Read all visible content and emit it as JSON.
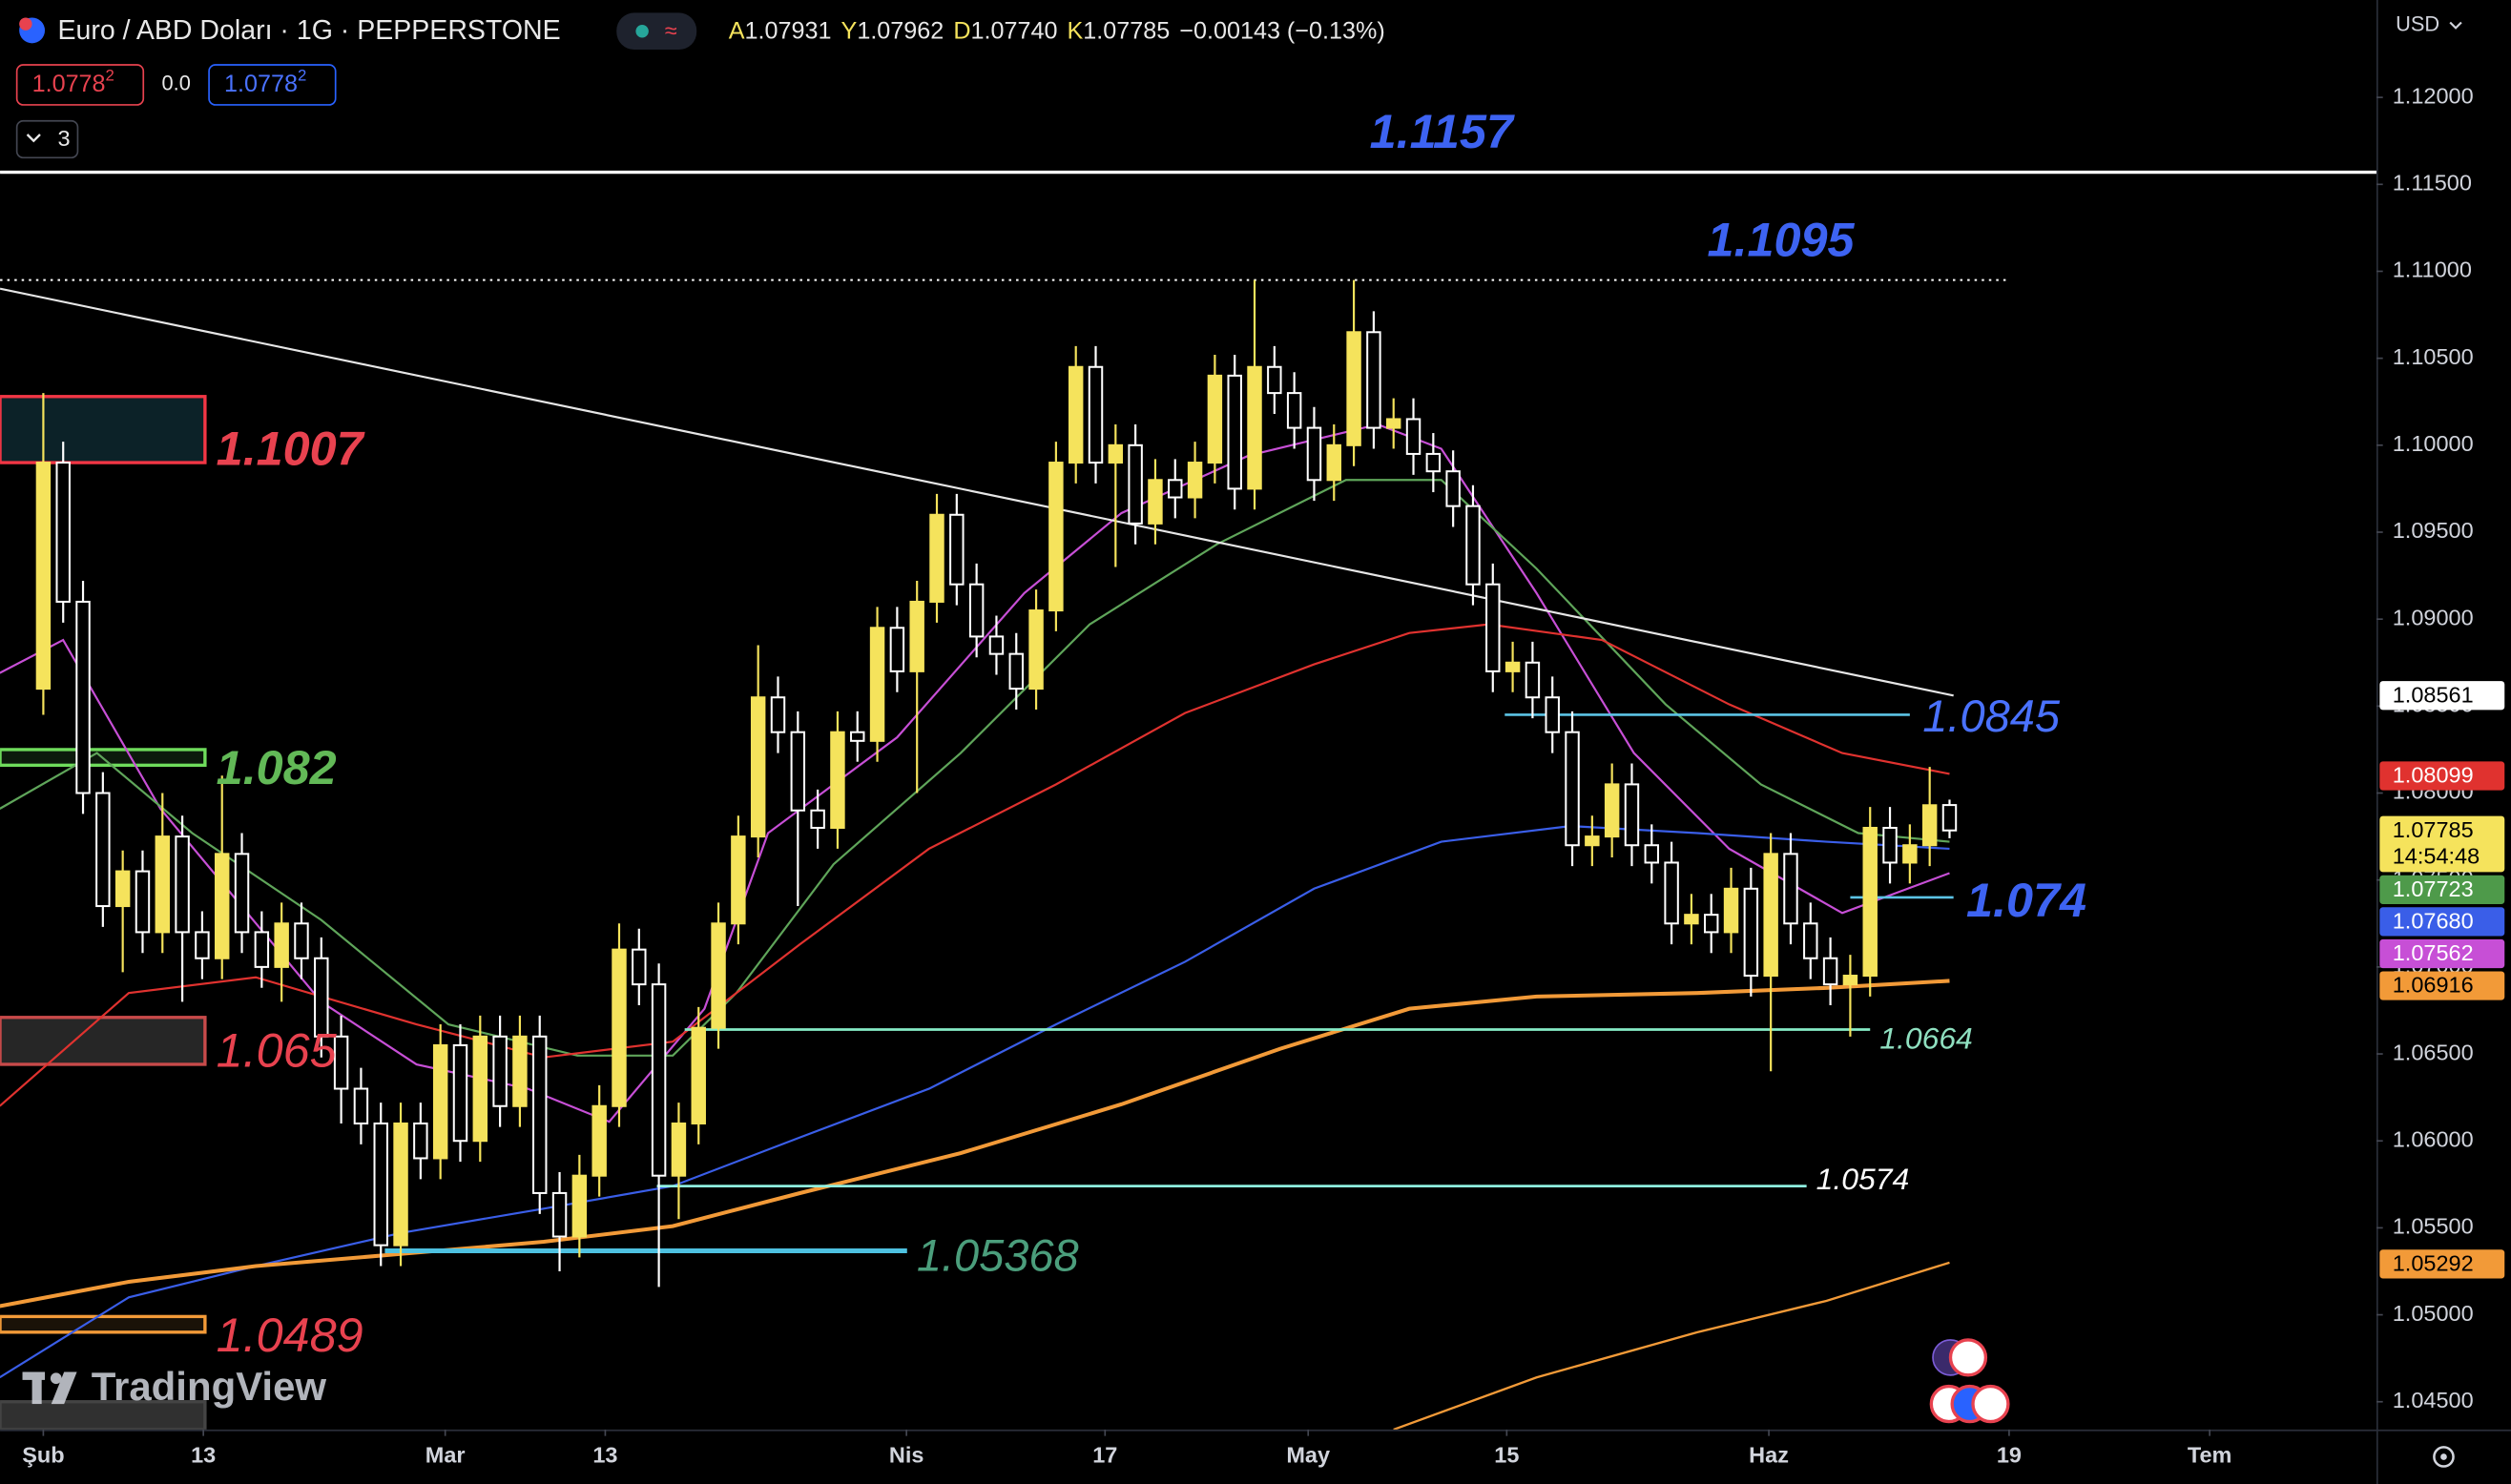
{
  "header": {
    "symbol": "Euro / ABD Doları · 1G · PEPPERSTONE",
    "ohlc": [
      {
        "key": "A",
        "value": "1.07931"
      },
      {
        "key": "Y",
        "value": "1.07962"
      },
      {
        "key": "D",
        "value": "1.07740"
      },
      {
        "key": "K",
        "value": "1.07785"
      }
    ],
    "change": "−0.00143 (−0.13%)",
    "sell": "1.0778",
    "sell_sup": "2",
    "spread": "0.0",
    "buy": "1.0778",
    "buy_sup": "2",
    "indicators": "3",
    "currency": "USD",
    "brand": "TradingView"
  },
  "chart_data": {
    "type": "candlestick",
    "up_color": "#f5e35c",
    "down_color": "#ffffff",
    "open": [
      1.086,
      1.099,
      1.091,
      1.08,
      1.0735,
      1.0755,
      1.072,
      1.0775,
      1.072,
      1.0705,
      1.0765,
      1.072,
      1.07,
      1.0725,
      1.0705,
      1.066,
      1.063,
      1.061,
      1.054,
      1.061,
      1.059,
      1.0655,
      1.06,
      1.066,
      1.062,
      1.066,
      1.057,
      1.0545,
      1.058,
      1.062,
      1.071,
      1.069,
      1.058,
      1.061,
      1.0665,
      1.0725,
      1.0775,
      1.0855,
      1.0835,
      1.079,
      1.078,
      1.0835,
      1.083,
      1.0895,
      1.087,
      1.091,
      1.096,
      1.092,
      1.089,
      1.088,
      1.086,
      1.0905,
      1.099,
      1.1045,
      1.099,
      1.1,
      1.0955,
      1.098,
      1.097,
      1.099,
      1.104,
      1.0975,
      1.1045,
      1.103,
      1.101,
      1.098,
      1.1,
      1.1065,
      1.101,
      1.1015,
      1.0995,
      1.0985,
      1.0965,
      1.092,
      1.087,
      1.0875,
      1.0855,
      1.0835,
      1.077,
      1.0775,
      1.0805,
      1.077,
      1.076,
      1.0725,
      1.073,
      1.072,
      1.0745,
      1.0695,
      1.0765,
      1.0725,
      1.0705,
      1.069,
      1.0695,
      1.078,
      1.076,
      1.077,
      1.07931
    ],
    "high": [
      1.103,
      1.1002,
      1.0922,
      1.0812,
      1.0767,
      1.0767,
      1.08,
      1.0787,
      1.0732,
      1.081,
      1.0777,
      1.0732,
      1.0737,
      1.0737,
      1.0717,
      1.0672,
      1.0642,
      1.0622,
      1.0622,
      1.0622,
      1.0667,
      1.0667,
      1.0672,
      1.0672,
      1.0672,
      1.0672,
      1.0582,
      1.0592,
      1.0632,
      1.0725,
      1.0722,
      1.0702,
      1.0622,
      1.0677,
      1.0737,
      1.0787,
      1.0885,
      1.0867,
      1.0847,
      1.0802,
      1.0847,
      1.0847,
      1.0907,
      1.0907,
      1.0922,
      1.0972,
      1.0972,
      1.0932,
      1.0902,
      1.0892,
      1.0917,
      1.1002,
      1.1057,
      1.1057,
      1.1012,
      1.1012,
      1.0992,
      1.0992,
      1.1002,
      1.1052,
      1.1052,
      1.1095,
      1.1057,
      1.1042,
      1.1022,
      1.1012,
      1.1095,
      1.1077,
      1.1027,
      1.1027,
      1.1007,
      1.0997,
      1.0977,
      1.0932,
      1.0887,
      1.0887,
      1.0867,
      1.0847,
      1.0787,
      1.0817,
      1.0817,
      1.0782,
      1.0772,
      1.0742,
      1.0742,
      1.0757,
      1.0757,
      1.0777,
      1.0777,
      1.0737,
      1.0717,
      1.0707,
      1.0792,
      1.0792,
      1.0782,
      1.0815,
      1.07962
    ],
    "low": [
      1.0845,
      1.0898,
      1.0788,
      1.0723,
      1.0697,
      1.0708,
      1.0708,
      1.068,
      1.0693,
      1.0693,
      1.0708,
      1.0688,
      1.068,
      1.0693,
      1.0648,
      1.061,
      1.0598,
      1.0528,
      1.0528,
      1.0578,
      1.0578,
      1.0588,
      1.0588,
      1.0608,
      1.0608,
      1.0558,
      1.0525,
      1.0533,
      1.0568,
      1.0608,
      1.0678,
      1.0516,
      1.0555,
      1.0598,
      1.0653,
      1.0713,
      1.0763,
      1.0823,
      1.0735,
      1.0768,
      1.0768,
      1.0818,
      1.0818,
      1.0858,
      1.08,
      1.0898,
      1.0908,
      1.0878,
      1.0868,
      1.0848,
      1.0848,
      1.0893,
      1.0978,
      1.0978,
      1.093,
      1.0943,
      1.0943,
      1.0958,
      1.0958,
      1.0978,
      1.0963,
      1.0963,
      1.1018,
      1.0998,
      1.0968,
      1.0968,
      1.0988,
      1.0998,
      1.0998,
      1.0983,
      1.0973,
      1.0953,
      1.0908,
      1.0858,
      1.0858,
      1.0843,
      1.0823,
      1.0758,
      1.0758,
      1.0763,
      1.0758,
      1.0748,
      1.0713,
      1.0713,
      1.0708,
      1.0708,
      1.0683,
      1.064,
      1.0713,
      1.0693,
      1.0678,
      1.066,
      1.0683,
      1.0748,
      1.0748,
      1.0758,
      1.0774
    ],
    "close": [
      1.099,
      1.091,
      1.08,
      1.0735,
      1.0755,
      1.072,
      1.0775,
      1.072,
      1.0705,
      1.0765,
      1.072,
      1.07,
      1.0725,
      1.0705,
      1.066,
      1.063,
      1.061,
      1.054,
      1.061,
      1.059,
      1.0655,
      1.06,
      1.066,
      1.062,
      1.066,
      1.057,
      1.0545,
      1.058,
      1.062,
      1.071,
      1.069,
      1.058,
      1.061,
      1.0665,
      1.0725,
      1.0775,
      1.0855,
      1.0835,
      1.079,
      1.078,
      1.0835,
      1.083,
      1.0895,
      1.087,
      1.091,
      1.096,
      1.092,
      1.089,
      1.088,
      1.086,
      1.0905,
      1.099,
      1.1045,
      1.099,
      1.1,
      1.0955,
      1.098,
      1.097,
      1.099,
      1.104,
      1.0975,
      1.1045,
      1.103,
      1.101,
      1.098,
      1.1,
      1.1065,
      1.101,
      1.1015,
      1.0995,
      1.0985,
      1.0965,
      1.092,
      1.087,
      1.0875,
      1.0855,
      1.0835,
      1.077,
      1.0775,
      1.0805,
      1.077,
      1.076,
      1.0725,
      1.073,
      1.072,
      1.0745,
      1.0695,
      1.0765,
      1.0725,
      1.0705,
      1.069,
      1.0695,
      1.078,
      1.076,
      1.077,
      1.0793,
      1.07785
    ],
    "xlim": [
      -2.18,
      117.5
    ],
    "xticks": [
      {
        "value": 0,
        "label": "Şub"
      },
      {
        "value": 8.06,
        "label": "13"
      },
      {
        "value": 20.24,
        "label": "Mar"
      },
      {
        "value": 28.3,
        "label": "13"
      },
      {
        "value": 43.47,
        "label": "Nis"
      },
      {
        "value": 53.47,
        "label": "17"
      },
      {
        "value": 63.7,
        "label": "May"
      },
      {
        "value": 73.7,
        "label": "15"
      },
      {
        "value": 86.9,
        "label": "Haz"
      },
      {
        "value": 99.0,
        "label": "19"
      },
      {
        "value": 109.1,
        "label": "Tem"
      }
    ],
    "ylim": [
      1.0434,
      1.1256
    ],
    "yticks": [
      {
        "value": 1.045,
        "label": "1.04500"
      },
      {
        "value": 1.05,
        "label": "1.05000"
      },
      {
        "value": 1.055,
        "label": "1.05500"
      },
      {
        "value": 1.06,
        "label": "1.06000"
      },
      {
        "value": 1.065,
        "label": "1.06500"
      },
      {
        "value": 1.07,
        "label": "1.07000"
      },
      {
        "value": 1.075,
        "label": "1.07500"
      },
      {
        "value": 1.08,
        "label": "1.08000"
      },
      {
        "value": 1.085,
        "label": "1.08500"
      },
      {
        "value": 1.09,
        "label": "1.09000"
      },
      {
        "value": 1.095,
        "label": "1.09500"
      },
      {
        "value": 1.1,
        "label": "1.10000"
      },
      {
        "value": 1.105,
        "label": "1.10500"
      },
      {
        "value": 1.11,
        "label": "1.11000"
      },
      {
        "value": 1.115,
        "label": "1.11500"
      },
      {
        "value": 1.12,
        "label": "1.12000"
      }
    ],
    "lines": [
      {
        "color": "#c74fd6",
        "x": [
          -2.2,
          1.0,
          5.9,
          14.0,
          18.8,
          24.4,
          28.5,
          33.3,
          36.5,
          43.0,
          49.4,
          54.3,
          60.7,
          67.2,
          70.4,
          75.2,
          80.1,
          84.9,
          90.6,
          96.0
        ],
        "values": [
          1.0869,
          1.0888,
          1.0791,
          1.068,
          1.0644,
          1.063,
          1.0611,
          1.0676,
          1.0777,
          1.0832,
          1.0915,
          1.0961,
          1.0994,
          1.1012,
          1.0998,
          1.0915,
          1.0823,
          1.0768,
          1.0731,
          1.0754
        ]
      },
      {
        "color": "#5fa55a",
        "x": [
          -2.2,
          2.7,
          7.5,
          14.0,
          20.4,
          26.9,
          31.7,
          34.9,
          39.8,
          46.2,
          52.7,
          59.1,
          65.6,
          70.4,
          75.2,
          81.7,
          86.5,
          91.4,
          96.0
        ],
        "values": [
          1.0791,
          1.0823,
          1.0777,
          1.0727,
          1.0667,
          1.0649,
          1.0649,
          1.0685,
          1.0759,
          1.0823,
          1.0897,
          1.0943,
          1.098,
          1.098,
          1.0929,
          1.0851,
          1.0805,
          1.0777,
          1.0772
        ]
      },
      {
        "color": "#e0322f",
        "x": [
          -2.2,
          4.3,
          10.7,
          18.8,
          25.2,
          31.7,
          38.1,
          44.6,
          51.0,
          57.5,
          64.0,
          68.8,
          72.8,
          78.5,
          84.9,
          90.6,
          96.0
        ],
        "values": [
          1.062,
          1.0685,
          1.0694,
          1.0667,
          1.0648,
          1.0657,
          1.0713,
          1.0768,
          1.0805,
          1.0846,
          1.0874,
          1.0892,
          1.0897,
          1.0888,
          1.0851,
          1.0823,
          1.0811
        ]
      },
      {
        "color": "#3a5ee8",
        "x": [
          -2.2,
          4.3,
          10.7,
          18.0,
          25.2,
          31.7,
          38.1,
          44.6,
          51.0,
          57.5,
          64.0,
          70.4,
          76.9,
          83.3,
          89.8,
          96.0
        ],
        "values": [
          1.0464,
          1.051,
          1.0528,
          1.0547,
          1.0561,
          1.0574,
          1.0602,
          1.063,
          1.0667,
          1.0703,
          1.0745,
          1.0772,
          1.0781,
          1.0777,
          1.0772,
          1.0768
        ]
      },
      {
        "color": "#f29a38",
        "x": [
          -2.2,
          4.3,
          10.7,
          18.0,
          25.2,
          31.7,
          38.1,
          46.2,
          54.3,
          62.3,
          68.8,
          75.2,
          83.3,
          89.8,
          96.0
        ],
        "values": [
          1.0505,
          1.0519,
          1.0528,
          1.0535,
          1.0542,
          1.0551,
          1.057,
          1.0593,
          1.0621,
          1.0653,
          1.0676,
          1.0683,
          1.0685,
          1.0688,
          1.0692
        ]
      },
      {
        "color": "#f29a38",
        "x": [
          68.0,
          75.2,
          83.3,
          89.8,
          96.0
        ],
        "values": [
          1.0434,
          1.0464,
          1.049,
          1.0508,
          1.053
        ]
      }
    ],
    "trendline": {
      "color": "#e6e6e6",
      "x": [
        -2.18,
        96.2
      ],
      "values": [
        1.109,
        1.0856
      ]
    },
    "zones": [
      {
        "range": [
          1.099,
          1.1028
        ],
        "color": "#f23645",
        "fill": "#0c2228"
      },
      {
        "range": [
          1.0816,
          1.0825
        ],
        "color": "#6fdc5c",
        "fill": "#0c1a0c"
      },
      {
        "range": [
          1.0644,
          1.0671
        ],
        "color": "#c84a4a",
        "fill": "#262626"
      },
      {
        "range": [
          1.049,
          1.0499
        ],
        "color": "#f29a38",
        "fill": "#1a1208"
      },
      {
        "range": [
          1.0434,
          1.045
        ],
        "color": "#444444",
        "fill": "#303030"
      }
    ],
    "levels": [
      {
        "value": 1.1157,
        "line_color": "#ffffff",
        "style": "solid",
        "label_color": "#3d63f2"
      },
      {
        "value": 1.1095,
        "x": [
          -2.18,
          99.0
        ],
        "line_color": "#ffffff",
        "style": "dotted",
        "label_color": "#3d63f2"
      },
      {
        "value": 1.1007,
        "label_color": "#e8424f"
      },
      {
        "value": 1.082,
        "label_color": "#62b957"
      },
      {
        "value": 1.065,
        "label_color": "#e8424f"
      },
      {
        "value": 1.0489,
        "label_color": "#e8424f"
      },
      {
        "value": 1.0845,
        "x": [
          73.6,
          94.0
        ],
        "line_color": "#5cc4e6",
        "style": "solid",
        "label_color": "#4a72ff"
      },
      {
        "value": 1.074,
        "x": [
          91.0,
          96.2
        ],
        "line_color": "#5cc4e6",
        "style": "solid",
        "label_color": "#3d63f2"
      },
      {
        "value": 1.0664,
        "x": [
          32.3,
          92.0
        ],
        "line_color": "#86ecc6",
        "style": "solid",
        "label_color": "#8fe0c0"
      },
      {
        "value": 1.0574,
        "x": [
          30.9,
          88.8
        ],
        "line_color": "#8ff0e0",
        "style": "solid",
        "label_color": "#ffffff"
      },
      {
        "value": 1.05368,
        "x": [
          17.2,
          43.5
        ],
        "line_color": "#4ec1e0",
        "style": "thick",
        "label_color": "#4b9e7c"
      }
    ],
    "price_tags": [
      {
        "value": 1.08561,
        "label": "1.08561",
        "color": "#ffffff",
        "text_color": "#000000"
      },
      {
        "value": 1.08099,
        "label": "1.08099",
        "color": "#e0322f",
        "text_color": "#ffffff"
      },
      {
        "value": 1.07785,
        "label": "1.07785",
        "color": "#f5e35c",
        "text_color": "#000000"
      },
      {
        "value": 1.07723,
        "label": "1.07723",
        "color": "#4e9a4a",
        "text_color": "#ffffff"
      },
      {
        "value": 1.0768,
        "label": "1.07680",
        "color": "#3a5ee8",
        "text_color": "#ffffff"
      },
      {
        "value": 1.07562,
        "label": "1.07562",
        "color": "#c74fd6",
        "text_color": "#ffffff"
      },
      {
        "value": 1.06916,
        "label": "1.06916",
        "color": "#f29a38",
        "text_color": "#000000"
      },
      {
        "value": 1.05292,
        "label": "1.05292",
        "color": "#f29a38",
        "text_color": "#000000"
      }
    ],
    "countdown": "14:54:48"
  }
}
